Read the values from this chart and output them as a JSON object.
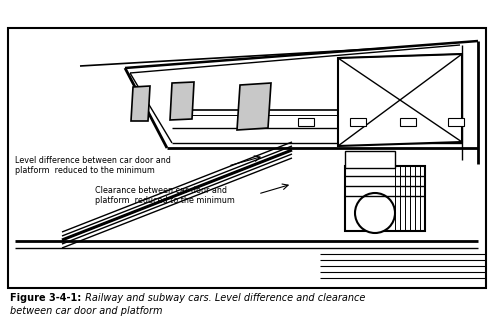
{
  "title_bold": "Figure 3-4-1:",
  "title_italic": " Railway and subway cars. Level difference and clearance",
  "title_line2": "between car door and platform",
  "label1": "Level difference between car door and\nplatform  reduced to the minimum",
  "label2": "Clearance between car door and\nplatform  reduced to the minimum",
  "border_color": "#000000",
  "bg_color": "#ffffff",
  "window_fill": "#c8c8c8",
  "figsize": [
    4.94,
    3.3
  ],
  "dpi": 100
}
